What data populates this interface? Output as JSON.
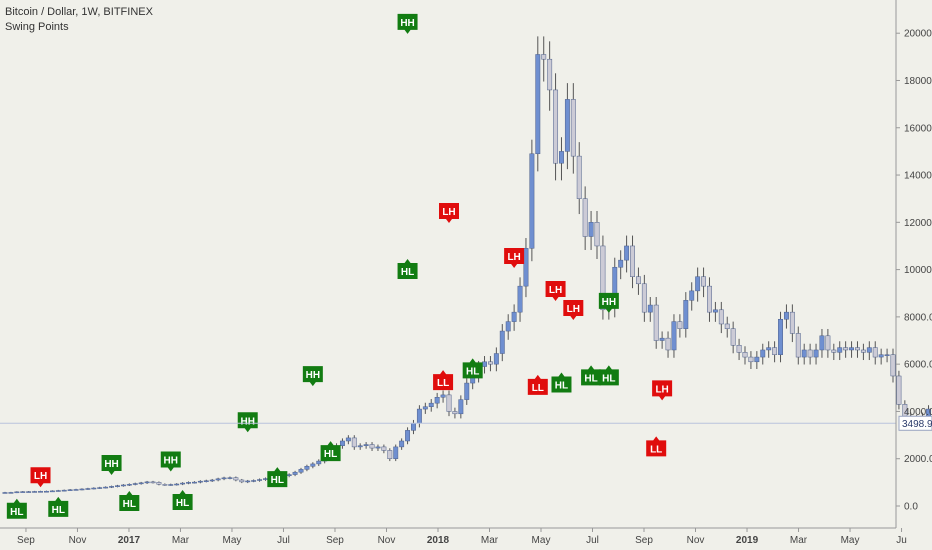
{
  "header": {
    "title": "Bitcoin / Dollar, 1W, BITFINEX",
    "indicator": "Swing Points"
  },
  "colors": {
    "background": "#f0f0ea",
    "up_candle": "#6f8fd0",
    "down_candle": "#cccbd6",
    "wick": "#555555",
    "swing_high": "#e00d0d",
    "swing_low": "#127c12",
    "price_line": "#b9c3dc"
  },
  "chart_data": {
    "type": "candlestick",
    "symbol": "Bitcoin / Dollar",
    "timeframe": "1W",
    "exchange": "BITFINEX",
    "y_axis": {
      "ticks": [
        "0.0",
        "2000.0",
        "4000.0",
        "6000.0",
        "8000.0",
        "10000.0",
        "12000.0",
        "14000.0",
        "16000.0",
        "18000.0",
        "20000.0"
      ],
      "ylim": [
        -500,
        20800
      ]
    },
    "x_axis": {
      "labels": [
        "Sep",
        "Nov",
        "2017",
        "Mar",
        "May",
        "Jul",
        "Sep",
        "Nov",
        "2018",
        "Mar",
        "May",
        "Jul",
        "Sep",
        "Nov",
        "2019",
        "Mar",
        "May",
        "Ju"
      ],
      "bold_labels": [
        "2017",
        "2018",
        "2019"
      ]
    },
    "last_price": "3498.9",
    "weeks_start": "2016-08-29",
    "closes": [
      572,
      575,
      600,
      608,
      610,
      615,
      620,
      625,
      640,
      655,
      670,
      690,
      700,
      720,
      740,
      760,
      780,
      800,
      830,
      860,
      890,
      920,
      950,
      980,
      1020,
      1000,
      920,
      900,
      910,
      930,
      970,
      1000,
      1010,
      1050,
      1070,
      1100,
      1150,
      1190,
      1200,
      1100,
      1020,
      1060,
      1080,
      1120,
      1160,
      1200,
      1230,
      1280,
      1330,
      1430,
      1550,
      1680,
      1780,
      1900,
      2100,
      2300,
      2550,
      2750,
      2880,
      2500,
      2550,
      2600,
      2450,
      2500,
      2350,
      2000,
      2500,
      2750,
      3200,
      3500,
      4100,
      4200,
      4350,
      4600,
      4700,
      4000,
      3900,
      4500,
      5200,
      5500,
      5900,
      6100,
      6000,
      6450,
      7400,
      7800,
      8200,
      9300,
      10900,
      14900,
      19100,
      18900,
      17600,
      14500,
      15000,
      17200,
      14800,
      13000,
      11400,
      12000,
      11000,
      8300,
      8400,
      10100,
      10400,
      11000,
      9700,
      9400,
      8200,
      8500,
      7000,
      7100,
      6600,
      7800,
      7500,
      8700,
      9100,
      9700,
      9300,
      8200,
      8300,
      7700,
      7500,
      6800,
      6500,
      6300,
      6100,
      6300,
      6600,
      6700,
      6400,
      7900,
      8200,
      7300,
      6300,
      6600,
      6300,
      6600,
      7200,
      6600,
      6500,
      6700,
      6600,
      6700,
      6600,
      6500,
      6700,
      6300,
      6400,
      6400,
      5500,
      4300,
      3800,
      3700,
      3600,
      3800,
      4100,
      4000,
      3700,
      3600,
      3500,
      3600,
      3650,
      3500
    ],
    "swing_points": [
      {
        "week": 2,
        "label": "HL",
        "kind": "low",
        "price": 560
      },
      {
        "week": 6,
        "label": "LH",
        "kind": "high",
        "price": 625
      },
      {
        "week": 9,
        "label": "HL",
        "kind": "low",
        "price": 640
      },
      {
        "week": 18,
        "label": "HH",
        "kind": "high",
        "price": 1140
      },
      {
        "week": 21,
        "label": "HL",
        "kind": "low",
        "price": 890
      },
      {
        "week": 28,
        "label": "HH",
        "kind": "high",
        "price": 1290
      },
      {
        "week": 30,
        "label": "HL",
        "kind": "low",
        "price": 930
      },
      {
        "week": 41,
        "label": "HH",
        "kind": "high",
        "price": 2950
      },
      {
        "week": 46,
        "label": "HL",
        "kind": "low",
        "price": 1900
      },
      {
        "week": 52,
        "label": "HH",
        "kind": "high",
        "price": 4900
      },
      {
        "week": 55,
        "label": "HL",
        "kind": "low",
        "price": 3000
      },
      {
        "week": 68,
        "label": "HH",
        "kind": "high",
        "price": 19800
      },
      {
        "week": 68,
        "label": "HL",
        "kind": "low",
        "price": 10700
      },
      {
        "week": 75,
        "label": "LH",
        "kind": "high",
        "price": 11800
      },
      {
        "week": 74,
        "label": "LL",
        "kind": "low",
        "price": 6000
      },
      {
        "week": 79,
        "label": "HL",
        "kind": "low",
        "price": 6500
      },
      {
        "week": 86,
        "label": "LH",
        "kind": "high",
        "price": 9900
      },
      {
        "week": 90,
        "label": "LL",
        "kind": "low",
        "price": 5800
      },
      {
        "week": 93,
        "label": "LH",
        "kind": "high",
        "price": 8500
      },
      {
        "week": 96,
        "label": "LH",
        "kind": "high",
        "price": 7700
      },
      {
        "week": 94,
        "label": "HL",
        "kind": "low",
        "price": 5900
      },
      {
        "week": 99,
        "label": "HL",
        "kind": "low",
        "price": 6200
      },
      {
        "week": 102,
        "label": "HH",
        "kind": "high",
        "price": 8000
      },
      {
        "week": 102,
        "label": "HL",
        "kind": "low",
        "price": 6200
      },
      {
        "week": 111,
        "label": "LH",
        "kind": "high",
        "price": 4300
      },
      {
        "week": 110,
        "label": "LL",
        "kind": "low",
        "price": 3200
      }
    ]
  }
}
